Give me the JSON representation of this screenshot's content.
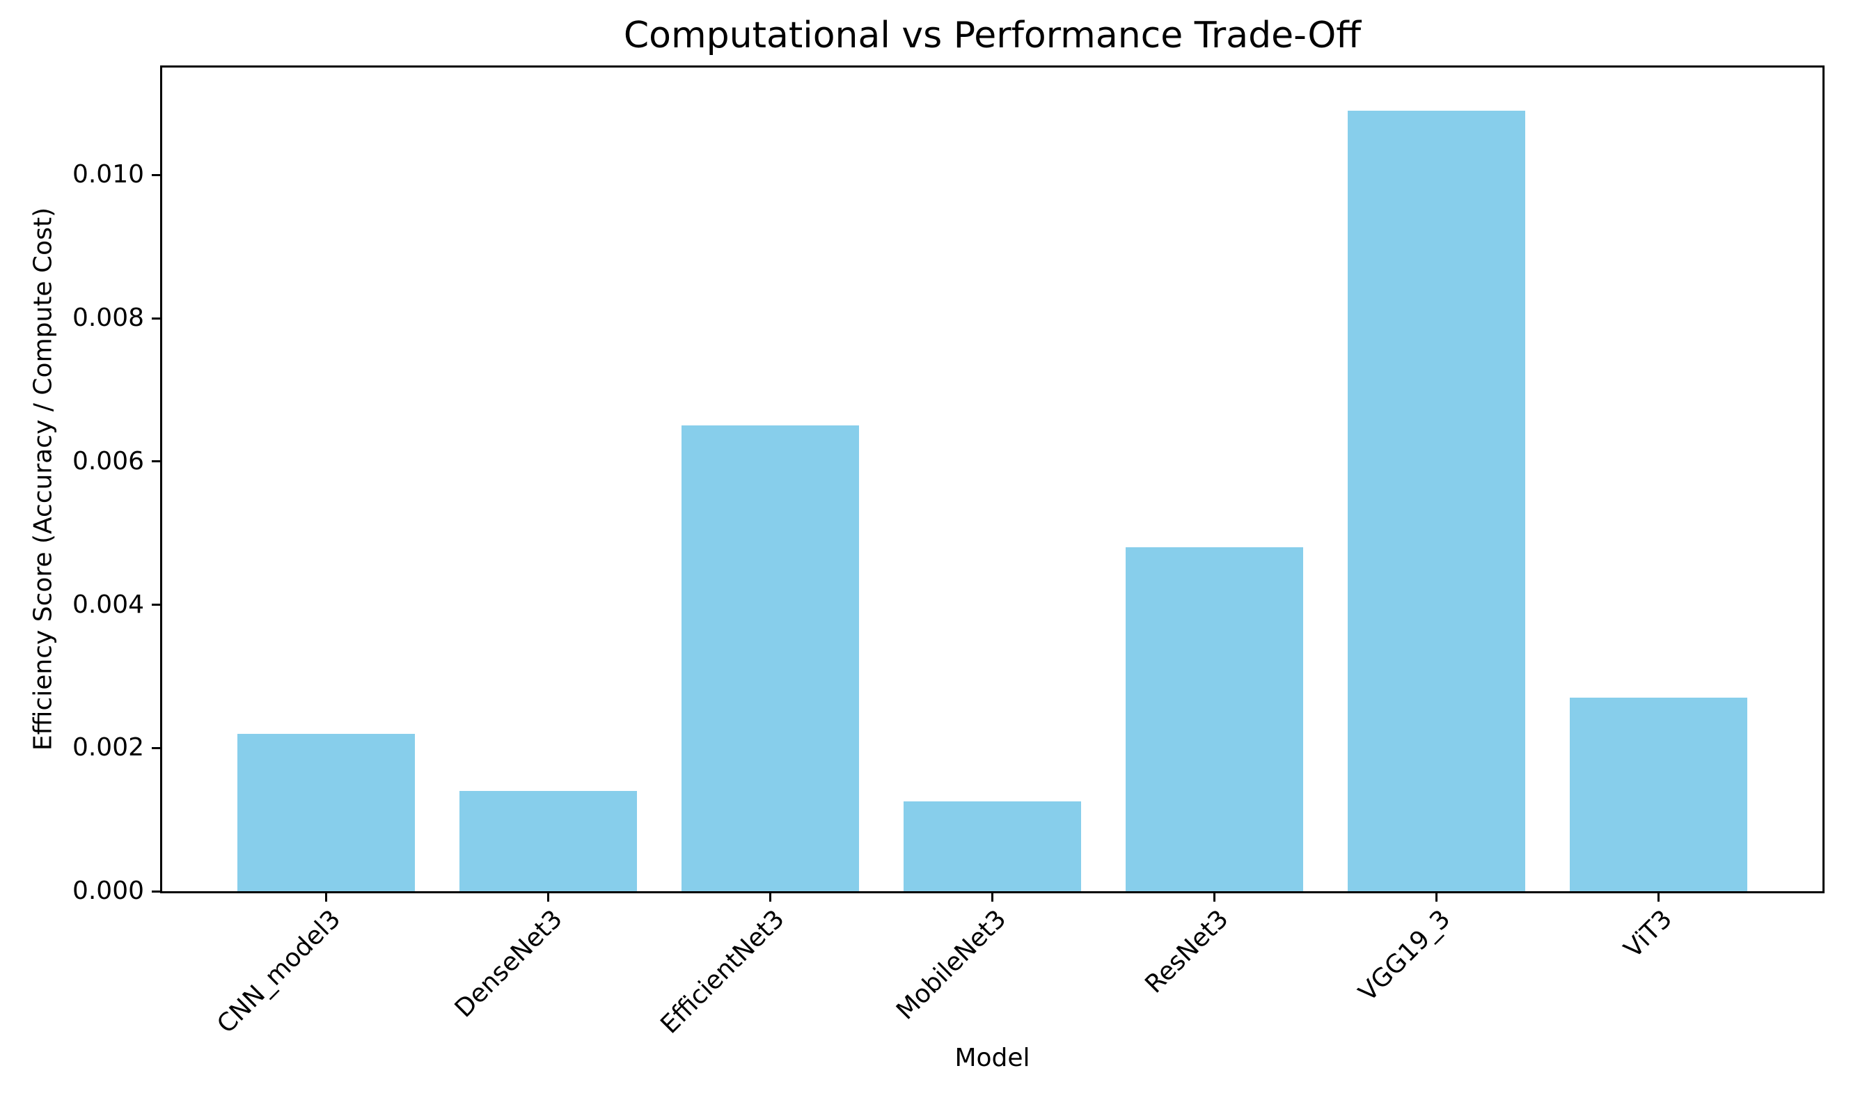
{
  "chart_data": {
    "type": "bar",
    "title": "Computational vs Performance Trade-Off",
    "xlabel": "Model",
    "ylabel": "Efficiency Score (Accuracy / Compute Cost)",
    "categories": [
      "CNN_model3",
      "DenseNet3",
      "EfficientNet3",
      "MobileNet3",
      "ResNet3",
      "VGG19_3",
      "ViT3"
    ],
    "values": [
      0.0022,
      0.0014,
      0.0065,
      0.00125,
      0.0048,
      0.0109,
      0.0027
    ],
    "bar_color": "#87CEEB",
    "axis_color": "#000000",
    "text_color": "#000000",
    "background_color": "#FFFFFF",
    "ylim": [
      0,
      0.0115
    ],
    "yticks": {
      "values": [
        0,
        0.002,
        0.004,
        0.006,
        0.008,
        0.01
      ],
      "labels": [
        "0.000",
        "0.002",
        "0.004",
        "0.006",
        "0.008",
        "0.010"
      ]
    },
    "bar_width_fraction": 0.8,
    "x_margin_fraction": 0.05,
    "grid": false,
    "legend": null,
    "xtick_rotation_deg": 45
  }
}
